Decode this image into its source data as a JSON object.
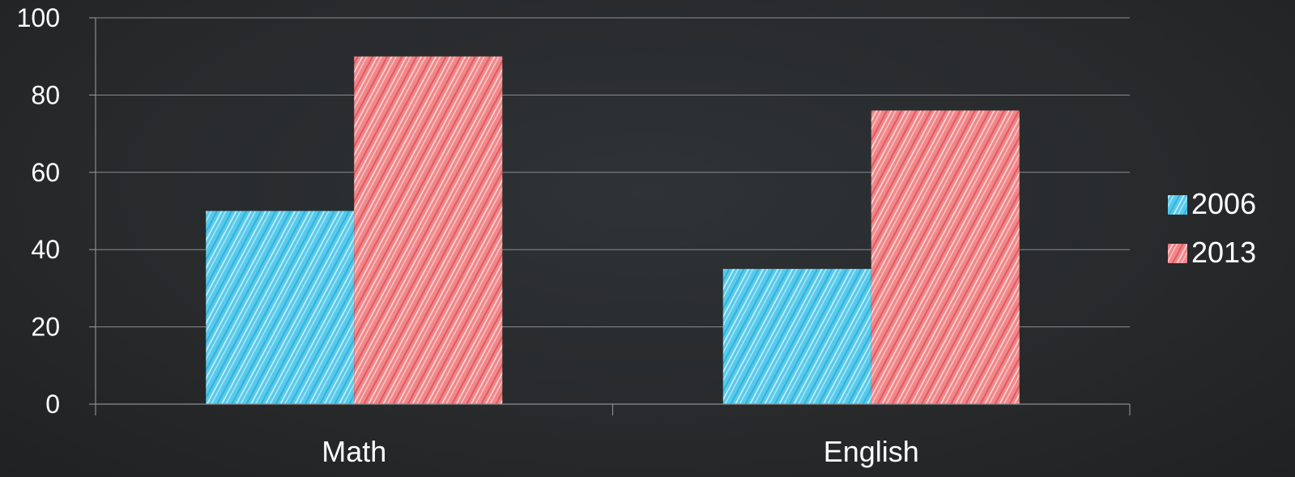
{
  "chart_data": {
    "type": "bar",
    "categories": [
      "Math",
      "English"
    ],
    "series": [
      {
        "name": "2006",
        "values": [
          50,
          35
        ],
        "color": "#59c9ea"
      },
      {
        "name": "2013",
        "values": [
          90,
          76
        ],
        "color": "#f0878a"
      }
    ],
    "ylim": [
      0,
      100
    ],
    "y_ticks": [
      "0",
      "20",
      "40",
      "60",
      "80",
      "100"
    ],
    "grid": true,
    "legend_position": "right",
    "colors": {
      "background": "#27292b",
      "text": "#ffffff",
      "grid": "#8a8c8e"
    }
  }
}
